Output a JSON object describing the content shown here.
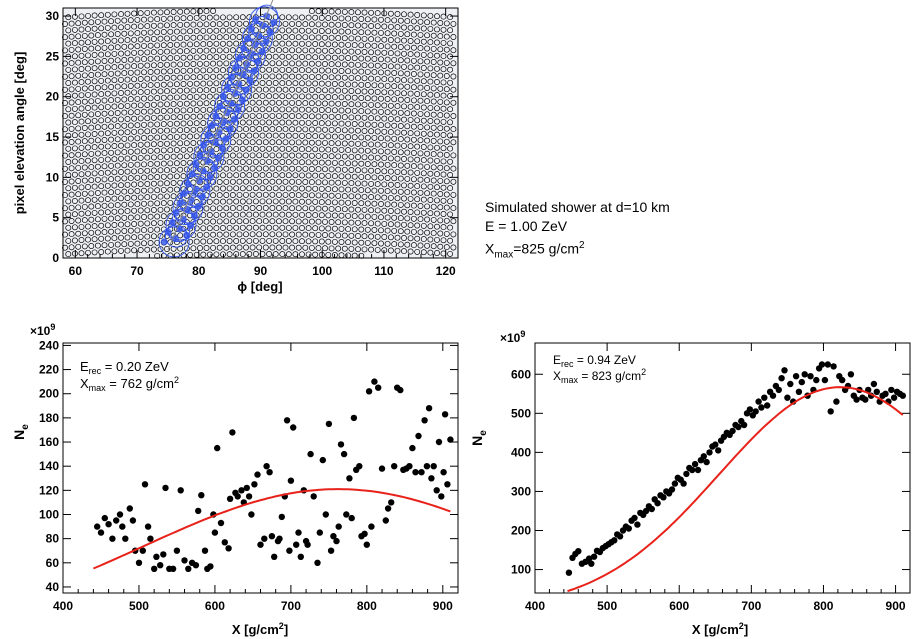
{
  "sim_info": {
    "line1": "Simulated shower at d=10 km",
    "line2": "E = 1.00 ZeV",
    "xmax_label": "X",
    "xmax_sub": "max",
    "xmax_value": "=825 g/cm",
    "xmax_sup": "2"
  },
  "chart_data": [
    {
      "type": "scatter",
      "id": "camera",
      "xlabel": "ϕ [deg]",
      "ylabel": "pixel elevation angle [deg]",
      "xlim": [
        58,
        122
      ],
      "ylim": [
        0,
        31
      ],
      "xticks": [
        60,
        70,
        80,
        90,
        100,
        110,
        120
      ],
      "yticks": [
        0,
        5,
        10,
        15,
        20,
        25,
        30
      ],
      "track": {
        "start": [
          76,
          2
        ],
        "end": [
          91,
          30
        ]
      },
      "background_color": "#eef1f4",
      "track_color": "#3355ee"
    },
    {
      "type": "scatter",
      "id": "profile-left",
      "xlabel": "X [g/cm",
      "xlabel_sup": "2",
      "xlabel_end": "]",
      "ylabel": "N",
      "ylabel_sub": "e",
      "exponent": "×10",
      "exponent_sup": "9",
      "xlim": [
        400,
        920
      ],
      "ylim": [
        35,
        242
      ],
      "xticks": [
        400,
        500,
        600,
        700,
        800,
        900
      ],
      "yticks": [
        40,
        60,
        80,
        100,
        120,
        140,
        160,
        180,
        200,
        220,
        240
      ],
      "annot1": "E",
      "annot1_sub": "rec",
      "annot1_val": " = 0.20 ZeV",
      "annot2": "X",
      "annot2_sub": "max",
      "annot2_val": " = 762 g/cm",
      "annot2_sup": "2",
      "fit": {
        "xmax": 762,
        "ymax": 121,
        "x_start": 440,
        "x_end": 910,
        "width": 460
      },
      "points": [
        [
          445,
          90
        ],
        [
          450,
          85
        ],
        [
          455,
          97
        ],
        [
          460,
          92
        ],
        [
          465,
          80
        ],
        [
          470,
          95
        ],
        [
          475,
          100
        ],
        [
          478,
          90
        ],
        [
          482,
          80
        ],
        [
          488,
          105
        ],
        [
          492,
          95
        ],
        [
          495,
          70
        ],
        [
          500,
          60
        ],
        [
          505,
          70
        ],
        [
          508,
          125
        ],
        [
          512,
          90
        ],
        [
          515,
          80
        ],
        [
          520,
          55
        ],
        [
          523,
          65
        ],
        [
          528,
          58
        ],
        [
          532,
          67
        ],
        [
          535,
          122
        ],
        [
          540,
          55
        ],
        [
          545,
          55
        ],
        [
          550,
          70
        ],
        [
          555,
          120
        ],
        [
          560,
          62
        ],
        [
          565,
          55
        ],
        [
          570,
          60
        ],
        [
          575,
          58
        ],
        [
          578,
          103
        ],
        [
          582,
          116
        ],
        [
          587,
          70
        ],
        [
          590,
          55
        ],
        [
          594,
          57
        ],
        [
          598,
          100
        ],
        [
          600,
          85
        ],
        [
          603,
          155
        ],
        [
          608,
          93
        ],
        [
          613,
          77
        ],
        [
          618,
          72
        ],
        [
          620,
          113
        ],
        [
          623,
          168
        ],
        [
          627,
          118
        ],
        [
          630,
          115
        ],
        [
          635,
          120
        ],
        [
          638,
          110
        ],
        [
          642,
          122
        ],
        [
          645,
          115
        ],
        [
          648,
          100
        ],
        [
          652,
          125
        ],
        [
          656,
          133
        ],
        [
          660,
          75
        ],
        [
          665,
          80
        ],
        [
          668,
          140
        ],
        [
          672,
          135
        ],
        [
          675,
          82
        ],
        [
          678,
          65
        ],
        [
          683,
          78
        ],
        [
          685,
          80
        ],
        [
          688,
          98
        ],
        [
          692,
          115
        ],
        [
          695,
          178
        ],
        [
          698,
          70
        ],
        [
          700,
          128
        ],
        [
          703,
          172
        ],
        [
          707,
          75
        ],
        [
          710,
          85
        ],
        [
          713,
          65
        ],
        [
          717,
          120
        ],
        [
          720,
          78
        ],
        [
          722,
          75
        ],
        [
          726,
          150
        ],
        [
          730,
          115
        ],
        [
          735,
          60
        ],
        [
          738,
          85
        ],
        [
          742,
          145
        ],
        [
          746,
          100
        ],
        [
          750,
          175
        ],
        [
          753,
          70
        ],
        [
          756,
          82
        ],
        [
          760,
          78
        ],
        [
          763,
          90
        ],
        [
          766,
          158
        ],
        [
          770,
          150
        ],
        [
          773,
          100
        ],
        [
          777,
          130
        ],
        [
          780,
          97
        ],
        [
          783,
          180
        ],
        [
          786,
          137
        ],
        [
          790,
          140
        ],
        [
          793,
          82
        ],
        [
          797,
          84
        ],
        [
          800,
          75
        ],
        [
          803,
          202
        ],
        [
          806,
          90
        ],
        [
          810,
          210
        ],
        [
          815,
          205
        ],
        [
          820,
          138
        ],
        [
          825,
          95
        ],
        [
          828,
          105
        ],
        [
          832,
          110
        ],
        [
          836,
          140
        ],
        [
          840,
          205
        ],
        [
          844,
          203
        ],
        [
          848,
          137
        ],
        [
          852,
          138
        ],
        [
          856,
          140
        ],
        [
          860,
          155
        ],
        [
          864,
          135
        ],
        [
          868,
          165
        ],
        [
          872,
          135
        ],
        [
          876,
          178
        ],
        [
          879,
          140
        ],
        [
          882,
          188
        ],
        [
          885,
          130
        ],
        [
          888,
          140
        ],
        [
          892,
          120
        ],
        [
          895,
          160
        ],
        [
          898,
          115
        ],
        [
          901,
          135
        ],
        [
          903,
          183
        ],
        [
          906,
          125
        ],
        [
          910,
          162
        ]
      ]
    },
    {
      "type": "scatter",
      "id": "profile-right",
      "xlabel": "X [g/cm",
      "xlabel_sup": "2",
      "xlabel_end": "]",
      "ylabel": "N",
      "ylabel_sub": "e",
      "exponent": "×10",
      "exponent_sup": "9",
      "xlim": [
        400,
        920
      ],
      "ylim": [
        40,
        680
      ],
      "xticks": [
        400,
        500,
        600,
        700,
        800,
        900
      ],
      "yticks": [
        100,
        200,
        300,
        400,
        500,
        600
      ],
      "annot1": "E",
      "annot1_sub": "rec",
      "annot1_val": " = 0.94 ZeV",
      "annot2": "X",
      "annot2_sub": "max",
      "annot2_val": " = 823 g/cm",
      "annot2_sup": "2",
      "fit": {
        "xmax": 823,
        "ymax": 567,
        "x_start": 445,
        "x_end": 910,
        "width": 300
      },
      "points": [
        [
          447,
          92
        ],
        [
          452,
          130
        ],
        [
          456,
          140
        ],
        [
          460,
          147
        ],
        [
          465,
          115
        ],
        [
          470,
          120
        ],
        [
          475,
          128
        ],
        [
          478,
          115
        ],
        [
          482,
          133
        ],
        [
          486,
          148
        ],
        [
          490,
          145
        ],
        [
          494,
          155
        ],
        [
          498,
          160
        ],
        [
          502,
          165
        ],
        [
          506,
          170
        ],
        [
          510,
          175
        ],
        [
          514,
          190
        ],
        [
          518,
          185
        ],
        [
          522,
          200
        ],
        [
          526,
          210
        ],
        [
          530,
          205
        ],
        [
          534,
          225
        ],
        [
          538,
          232
        ],
        [
          542,
          215
        ],
        [
          546,
          245
        ],
        [
          550,
          240
        ],
        [
          554,
          250
        ],
        [
          558,
          262
        ],
        [
          562,
          255
        ],
        [
          566,
          280
        ],
        [
          570,
          270
        ],
        [
          574,
          290
        ],
        [
          578,
          285
        ],
        [
          582,
          300
        ],
        [
          586,
          295
        ],
        [
          590,
          305
        ],
        [
          594,
          320
        ],
        [
          598,
          335
        ],
        [
          602,
          330
        ],
        [
          606,
          320
        ],
        [
          610,
          345
        ],
        [
          614,
          360
        ],
        [
          618,
          355
        ],
        [
          622,
          370
        ],
        [
          626,
          355
        ],
        [
          630,
          380
        ],
        [
          634,
          390
        ],
        [
          638,
          375
        ],
        [
          642,
          400
        ],
        [
          646,
          415
        ],
        [
          650,
          420
        ],
        [
          654,
          405
        ],
        [
          658,
          430
        ],
        [
          662,
          440
        ],
        [
          666,
          450
        ],
        [
          670,
          445
        ],
        [
          674,
          455
        ],
        [
          678,
          470
        ],
        [
          682,
          465
        ],
        [
          686,
          480
        ],
        [
          690,
          470
        ],
        [
          694,
          500
        ],
        [
          698,
          510
        ],
        [
          702,
          495
        ],
        [
          706,
          505
        ],
        [
          710,
          530
        ],
        [
          714,
          515
        ],
        [
          718,
          540
        ],
        [
          722,
          520
        ],
        [
          726,
          555
        ],
        [
          730,
          545
        ],
        [
          734,
          570
        ],
        [
          738,
          560
        ],
        [
          742,
          590
        ],
        [
          746,
          610
        ],
        [
          750,
          540
        ],
        [
          754,
          575
        ],
        [
          758,
          530
        ],
        [
          762,
          595
        ],
        [
          766,
          555
        ],
        [
          770,
          580
        ],
        [
          774,
          600
        ],
        [
          778,
          545
        ],
        [
          782,
          595
        ],
        [
          786,
          560
        ],
        [
          790,
          585
        ],
        [
          794,
          615
        ],
        [
          798,
          625
        ],
        [
          802,
          585
        ],
        [
          806,
          625
        ],
        [
          810,
          505
        ],
        [
          814,
          620
        ],
        [
          818,
          530
        ],
        [
          822,
          595
        ],
        [
          826,
          585
        ],
        [
          830,
          560
        ],
        [
          834,
          570
        ],
        [
          838,
          600
        ],
        [
          842,
          545
        ],
        [
          846,
          535
        ],
        [
          850,
          560
        ],
        [
          854,
          540
        ],
        [
          858,
          535
        ],
        [
          862,
          560
        ],
        [
          866,
          545
        ],
        [
          870,
          575
        ],
        [
          874,
          555
        ],
        [
          878,
          530
        ],
        [
          882,
          545
        ],
        [
          886,
          550
        ],
        [
          890,
          530
        ],
        [
          894,
          560
        ],
        [
          898,
          540
        ],
        [
          902,
          555
        ],
        [
          906,
          550
        ],
        [
          910,
          545
        ]
      ]
    }
  ]
}
